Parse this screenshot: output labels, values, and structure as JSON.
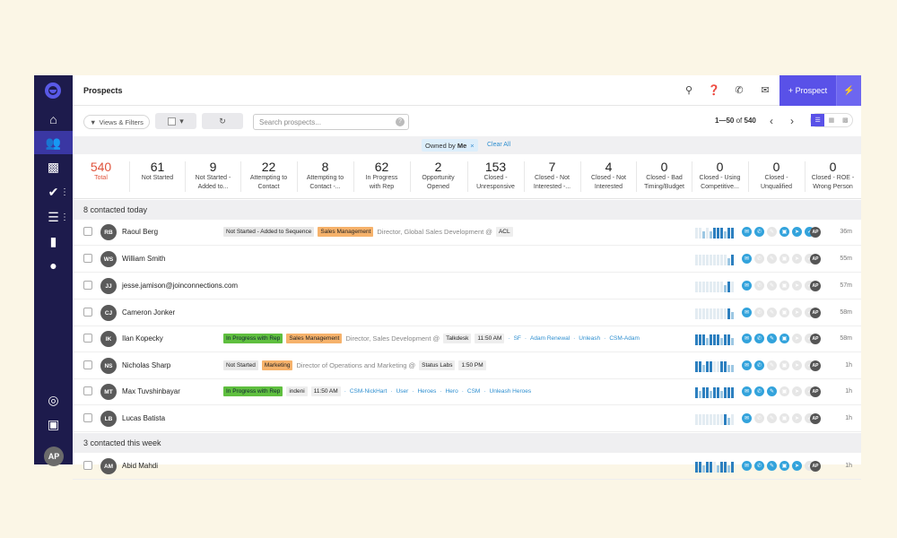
{
  "header": {
    "title": "Prospects",
    "add_label": "+ Prospect",
    "icons": [
      "search-icon",
      "help-icon",
      "phone-icon",
      "mail-icon",
      "bolt-icon"
    ]
  },
  "sidebar": {
    "items": [
      "home-icon",
      "prospects-icon",
      "briefcase-icon",
      "check-icon",
      "library-icon",
      "reports-icon",
      "user-icon"
    ],
    "bottom": [
      "globe-icon",
      "clipboard-icon"
    ],
    "avatar": "AP",
    "accent": "#3a37a3"
  },
  "toolbar": {
    "views_label": "Views & Filters",
    "search_placeholder": "Search prospects...",
    "range": "1—50",
    "of": "of",
    "total": "540"
  },
  "filter": {
    "chip_prefix": "Owned by",
    "chip_value": "Me",
    "chip_close": "×",
    "clear": "Clear All"
  },
  "stages": [
    {
      "num": "540",
      "l1": "Total",
      "l2": ""
    },
    {
      "num": "61",
      "l1": "Not Started",
      "l2": ""
    },
    {
      "num": "9",
      "l1": "Not Started -",
      "l2": "Added to..."
    },
    {
      "num": "22",
      "l1": "Attempting to",
      "l2": "Contact"
    },
    {
      "num": "8",
      "l1": "Attempting to",
      "l2": "Contact -..."
    },
    {
      "num": "62",
      "l1": "In Progress",
      "l2": "with Rep"
    },
    {
      "num": "2",
      "l1": "Opportunity",
      "l2": "Opened"
    },
    {
      "num": "153",
      "l1": "Closed -",
      "l2": "Unresponsive"
    },
    {
      "num": "7",
      "l1": "Closed - Not",
      "l2": "Interested -..."
    },
    {
      "num": "4",
      "l1": "Closed - Not",
      "l2": "Interested"
    },
    {
      "num": "0",
      "l1": "Closed - Bad",
      "l2": "Timing/Budget"
    },
    {
      "num": "0",
      "l1": "Closed - Using",
      "l2": "Competitive..."
    },
    {
      "num": "0",
      "l1": "Closed -",
      "l2": "Unqualified"
    },
    {
      "num": "0",
      "l1": "Closed - ROE -",
      "l2": "Wrong Person"
    }
  ],
  "sections": {
    "today": "8 contacted today",
    "week": "3 contacted this week"
  },
  "rows": [
    {
      "initials": "RB",
      "name": "Raoul Berg",
      "time": "36m",
      "owner": "AP",
      "tags": [
        {
          "t": "Not Started - Added to Sequence",
          "c": "stage-grey"
        },
        {
          "t": "Sales Management",
          "c": "persona"
        }
      ],
      "title": "Director, Global Sales Development @",
      "extra": [
        {
          "t": "ACL",
          "c": "plain"
        }
      ],
      "links": []
    },
    {
      "initials": "WS",
      "name": "William Smith",
      "time": "55m",
      "owner": "AP",
      "tags": [],
      "title": "",
      "extra": [],
      "links": []
    },
    {
      "initials": "JJ",
      "name": "jesse.jamison@joinconnections.com",
      "time": "57m",
      "owner": "AP",
      "tags": [],
      "title": "",
      "extra": [],
      "links": []
    },
    {
      "initials": "CJ",
      "name": "Cameron Jonker",
      "time": "58m",
      "owner": "AP",
      "tags": [],
      "title": "",
      "extra": [],
      "links": []
    },
    {
      "initials": "IK",
      "name": "Ilan Kopecky",
      "time": "58m",
      "owner": "AP",
      "tags": [
        {
          "t": "In Progress with Rep",
          "c": "stage-green"
        },
        {
          "t": "Sales Management",
          "c": "persona"
        }
      ],
      "title": "Director, Sales Development @",
      "extra": [
        {
          "t": "Talkdesk",
          "c": "plain"
        },
        {
          "t": "11:50 AM",
          "c": "plain"
        }
      ],
      "links": [
        "SF",
        "Adam Renewal",
        "Unleash",
        "CSM-Adam"
      ]
    },
    {
      "initials": "NS",
      "name": "Nicholas Sharp",
      "time": "1h",
      "owner": "AP",
      "tags": [
        {
          "t": "Not Started",
          "c": "stage-grey"
        },
        {
          "t": "Marketing",
          "c": "persona"
        }
      ],
      "title": "Director of Operations and Marketing @",
      "extra": [
        {
          "t": "Status Labs",
          "c": "plain"
        },
        {
          "t": "1:50 PM",
          "c": "plain"
        }
      ],
      "links": []
    },
    {
      "initials": "MT",
      "name": "Max Tuvshinbayar",
      "time": "1h",
      "owner": "AP",
      "tags": [
        {
          "t": "In Progress with Rep",
          "c": "stage-green"
        }
      ],
      "title": "",
      "extra": [
        {
          "t": "indeni",
          "c": "plain"
        },
        {
          "t": "11:50 AM",
          "c": "plain"
        }
      ],
      "links": [
        "CSM-NickHart",
        "User",
        "Heroes",
        "Hero",
        "CSM",
        "Unleash Heroes"
      ]
    },
    {
      "initials": "LB",
      "name": "Lucas Batista",
      "time": "1h",
      "owner": "AP",
      "tags": [],
      "title": "",
      "extra": [],
      "links": []
    },
    {
      "initials": "AM",
      "name": "Abid Mahdi",
      "time": "1h",
      "owner": "AP",
      "tags": [],
      "title": "",
      "extra": [],
      "links": []
    }
  ]
}
